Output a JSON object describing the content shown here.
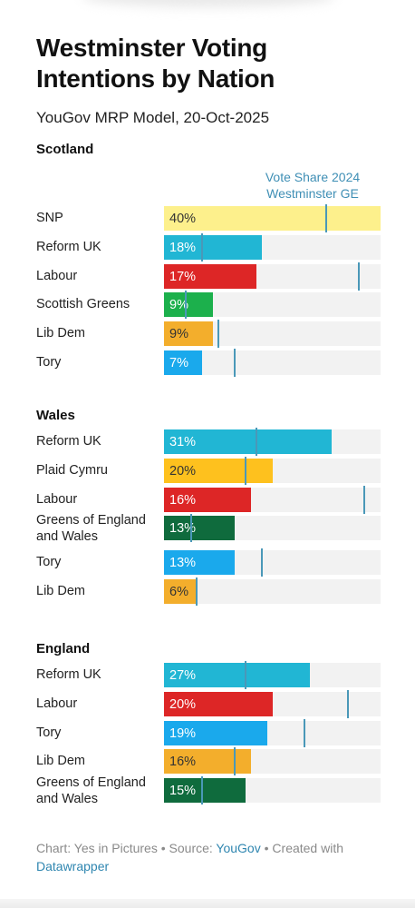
{
  "title": "Westminster Voting Intentions by Nation",
  "subtitle": "YouGov MRP Model, 20-Oct-2025",
  "legend": {
    "marker_line1": "Vote Share 2024",
    "marker_line2": "Westminster GE",
    "marker_color": "#4a98b8"
  },
  "footer": {
    "chart_prefix": "Chart: Yes in Pictures • Source: ",
    "source": "YouGov",
    "created_prefix": " • Created with",
    "tool": "Datawrapper"
  },
  "chart_data": [
    {
      "type": "bar",
      "orientation": "horizontal",
      "title": "Scotland",
      "xlim": [
        0,
        100
      ],
      "bars": [
        {
          "party": "SNP",
          "value": 40,
          "value_label": "40%",
          "ge2024": 30,
          "color": "#fdf08c",
          "text_color": "#333333"
        },
        {
          "party": "Reform UK",
          "value": 18,
          "value_label": "18%",
          "ge2024": 7,
          "color": "#21b6d4",
          "text_color": "#ffffff"
        },
        {
          "party": "Labour",
          "value": 17,
          "value_label": "17%",
          "ge2024": 36,
          "color": "#dd2626",
          "text_color": "#ffffff"
        },
        {
          "party": "Scottish Greens",
          "value": 9,
          "value_label": "9%",
          "ge2024": 4,
          "color": "#1cb04c",
          "text_color": "#ffffff"
        },
        {
          "party": "Lib Dem",
          "value": 9,
          "value_label": "9%",
          "ge2024": 10,
          "color": "#f3ae2c",
          "text_color": "#333333"
        },
        {
          "party": "Tory",
          "value": 7,
          "value_label": "7%",
          "ge2024": 13,
          "color": "#1aa9ec",
          "text_color": "#ffffff"
        }
      ]
    },
    {
      "type": "bar",
      "orientation": "horizontal",
      "title": "Wales",
      "xlim": [
        0,
        100
      ],
      "bars": [
        {
          "party": "Reform UK",
          "value": 31,
          "value_label": "31%",
          "ge2024": 17,
          "color": "#21b6d4",
          "text_color": "#ffffff"
        },
        {
          "party": "Plaid Cymru",
          "value": 20,
          "value_label": "20%",
          "ge2024": 15,
          "color": "#fec11e",
          "text_color": "#333333"
        },
        {
          "party": "Labour",
          "value": 16,
          "value_label": "16%",
          "ge2024": 37,
          "color": "#dd2626",
          "text_color": "#ffffff"
        },
        {
          "party": "Greens of England and Wales",
          "value": 13,
          "value_label": "13%",
          "ge2024": 5,
          "color": "#0f6b3d",
          "text_color": "#ffffff"
        },
        {
          "party": "Tory",
          "value": 13,
          "value_label": "13%",
          "ge2024": 18,
          "color": "#1aa9ec",
          "text_color": "#ffffff"
        },
        {
          "party": "Lib Dem",
          "value": 6,
          "value_label": "6%",
          "ge2024": 6,
          "color": "#f3ae2c",
          "text_color": "#333333"
        }
      ]
    },
    {
      "type": "bar",
      "orientation": "horizontal",
      "title": "England",
      "xlim": [
        0,
        100
      ],
      "bars": [
        {
          "party": "Reform UK",
          "value": 27,
          "value_label": "27%",
          "ge2024": 15,
          "color": "#21b6d4",
          "text_color": "#ffffff"
        },
        {
          "party": "Labour",
          "value": 20,
          "value_label": "20%",
          "ge2024": 34,
          "color": "#dd2626",
          "text_color": "#ffffff"
        },
        {
          "party": "Tory",
          "value": 19,
          "value_label": "19%",
          "ge2024": 26,
          "color": "#1aa9ec",
          "text_color": "#ffffff"
        },
        {
          "party": "Lib Dem",
          "value": 16,
          "value_label": "16%",
          "ge2024": 13,
          "color": "#f3ae2c",
          "text_color": "#333333"
        },
        {
          "party": "Greens of England and Wales",
          "value": 15,
          "value_label": "15%",
          "ge2024": 7,
          "color": "#0f6b3d",
          "text_color": "#ffffff"
        }
      ]
    }
  ]
}
